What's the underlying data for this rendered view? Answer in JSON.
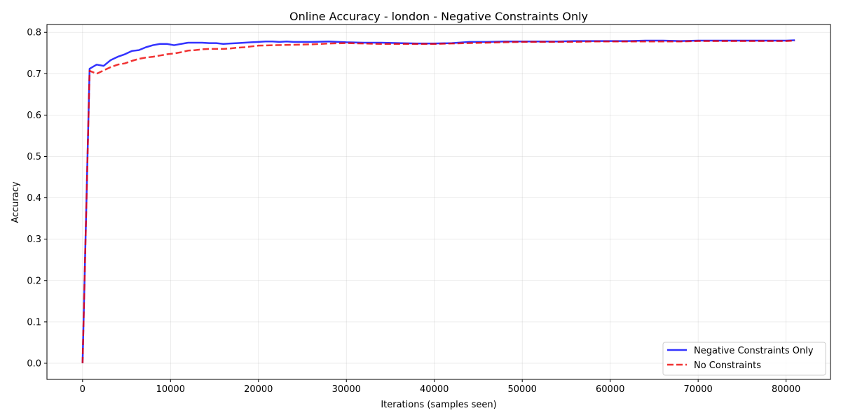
{
  "chart_data": {
    "type": "line",
    "title": "Online Accuracy - london - Negative Constraints Only",
    "xlabel": "Iterations (samples seen)",
    "ylabel": "Accuracy",
    "xlim": [
      -4050,
      85050
    ],
    "ylim": [
      -0.039,
      0.819
    ],
    "xticks": [
      0,
      10000,
      20000,
      30000,
      40000,
      50000,
      60000,
      70000,
      80000
    ],
    "yticks": [
      0.0,
      0.1,
      0.2,
      0.3,
      0.4,
      0.5,
      0.6,
      0.7,
      0.8
    ],
    "xtick_labels": [
      "0",
      "10000",
      "20000",
      "30000",
      "40000",
      "50000",
      "60000",
      "70000",
      "80000"
    ],
    "ytick_labels": [
      "0.0",
      "0.1",
      "0.2",
      "0.3",
      "0.4",
      "0.5",
      "0.6",
      "0.7",
      "0.8"
    ],
    "grid": true,
    "legend_position": "lower-right",
    "series": [
      {
        "name": "Negative Constraints Only",
        "color": "#0000ff",
        "style": "solid",
        "x": [
          0,
          800,
          1600,
          2400,
          3200,
          4000,
          4800,
          5600,
          6400,
          7200,
          8000,
          8800,
          9600,
          10400,
          11200,
          12000,
          12800,
          13600,
          14400,
          15200,
          16000,
          16800,
          17600,
          18400,
          19200,
          20000,
          20800,
          21600,
          22400,
          23200,
          24000,
          26000,
          28000,
          30000,
          32000,
          34000,
          36000,
          38000,
          40000,
          42000,
          44000,
          46000,
          48000,
          50000,
          52000,
          54000,
          56000,
          58000,
          60000,
          62000,
          64000,
          66000,
          68000,
          70000,
          72000,
          74000,
          76000,
          78000,
          80000,
          81000
        ],
        "values": [
          0.0,
          0.712,
          0.722,
          0.719,
          0.733,
          0.741,
          0.747,
          0.755,
          0.757,
          0.764,
          0.769,
          0.772,
          0.772,
          0.769,
          0.772,
          0.775,
          0.775,
          0.775,
          0.774,
          0.774,
          0.772,
          0.773,
          0.774,
          0.775,
          0.776,
          0.777,
          0.778,
          0.778,
          0.777,
          0.778,
          0.777,
          0.777,
          0.778,
          0.776,
          0.775,
          0.775,
          0.774,
          0.773,
          0.773,
          0.774,
          0.777,
          0.777,
          0.778,
          0.778,
          0.778,
          0.778,
          0.779,
          0.779,
          0.779,
          0.779,
          0.78,
          0.78,
          0.779,
          0.78,
          0.78,
          0.78,
          0.78,
          0.78,
          0.78,
          0.781
        ]
      },
      {
        "name": "No Constraints",
        "color": "#ee0000",
        "style": "dashed",
        "x": [
          0,
          800,
          1600,
          2400,
          3200,
          4000,
          4800,
          5600,
          6400,
          7200,
          8000,
          8800,
          9600,
          10400,
          11200,
          12000,
          12800,
          13600,
          14400,
          15200,
          16000,
          16800,
          17600,
          18400,
          19200,
          20000,
          22000,
          24000,
          26000,
          28000,
          30000,
          32000,
          34000,
          36000,
          38000,
          40000,
          42000,
          44000,
          46000,
          48000,
          50000,
          52000,
          54000,
          56000,
          58000,
          60000,
          62000,
          64000,
          66000,
          68000,
          70000,
          72000,
          74000,
          76000,
          78000,
          80000,
          81000
        ],
        "values": [
          0.0,
          0.707,
          0.7,
          0.708,
          0.716,
          0.722,
          0.725,
          0.731,
          0.736,
          0.739,
          0.741,
          0.744,
          0.747,
          0.749,
          0.752,
          0.756,
          0.757,
          0.759,
          0.76,
          0.76,
          0.76,
          0.761,
          0.763,
          0.764,
          0.766,
          0.768,
          0.769,
          0.77,
          0.771,
          0.773,
          0.774,
          0.773,
          0.772,
          0.772,
          0.772,
          0.772,
          0.773,
          0.774,
          0.775,
          0.776,
          0.777,
          0.777,
          0.777,
          0.777,
          0.778,
          0.778,
          0.778,
          0.778,
          0.778,
          0.778,
          0.779,
          0.779,
          0.779,
          0.779,
          0.779,
          0.779,
          0.78
        ]
      }
    ]
  }
}
